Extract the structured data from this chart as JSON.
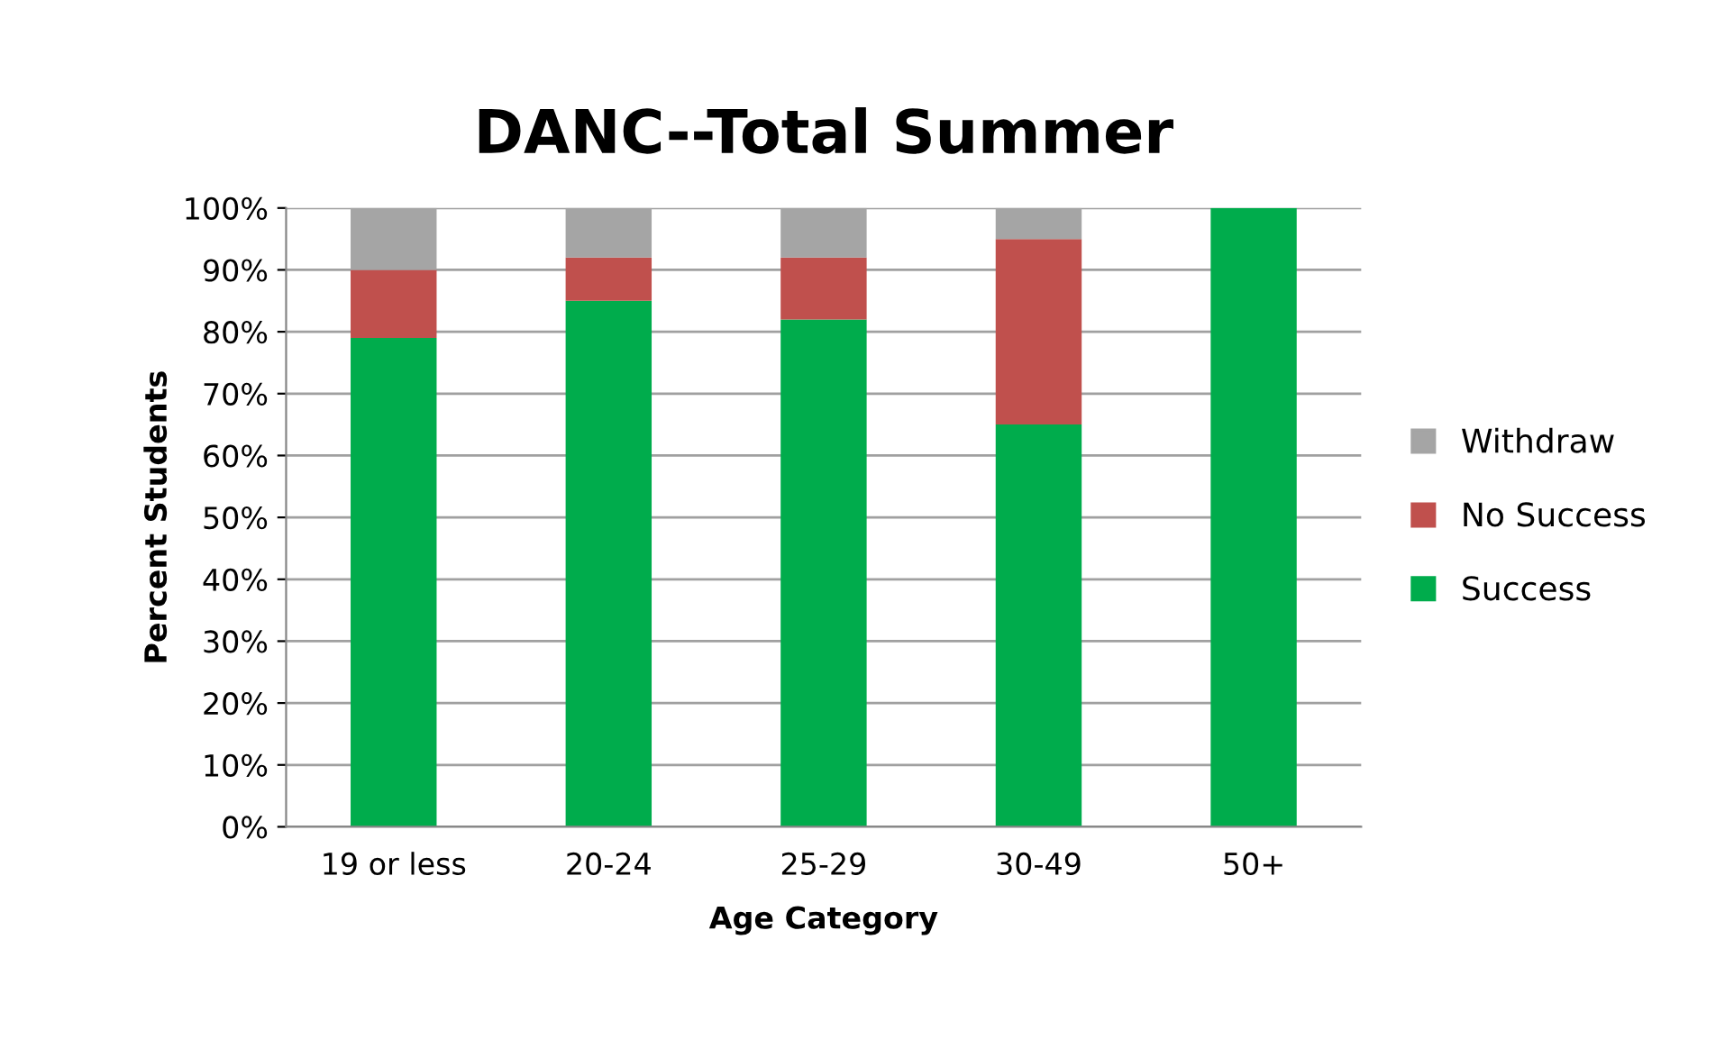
{
  "chart_data": {
    "type": "bar",
    "title": "DANC--Total Summer",
    "xlabel": "Age Category",
    "ylabel": "Percent Students",
    "categories": [
      "19 or less",
      "20-24",
      "25-29",
      "30-49",
      "50+"
    ],
    "stacked": true,
    "series": [
      {
        "name": "Success",
        "color": "#00ac4c",
        "values": [
          79,
          85,
          82,
          65,
          100
        ]
      },
      {
        "name": "No Success",
        "color": "#c0504d",
        "values": [
          11,
          7,
          10,
          30,
          0
        ]
      },
      {
        "name": "Withdraw",
        "color": "#a5a5a5",
        "values": [
          10,
          8,
          8,
          5,
          0
        ]
      }
    ],
    "ylim": [
      0,
      100
    ],
    "yticks": [
      {
        "value": 0,
        "label": "0%"
      },
      {
        "value": 10,
        "label": "10%"
      },
      {
        "value": 20,
        "label": "20%"
      },
      {
        "value": 30,
        "label": "30%"
      },
      {
        "value": 40,
        "label": "40%"
      },
      {
        "value": 50,
        "label": "50%"
      },
      {
        "value": 60,
        "label": "60%"
      },
      {
        "value": 70,
        "label": "70%"
      },
      {
        "value": 80,
        "label": "80%"
      },
      {
        "value": 90,
        "label": "90%"
      },
      {
        "value": 100,
        "label": "100%"
      }
    ],
    "grid": "y",
    "legend": "right"
  }
}
